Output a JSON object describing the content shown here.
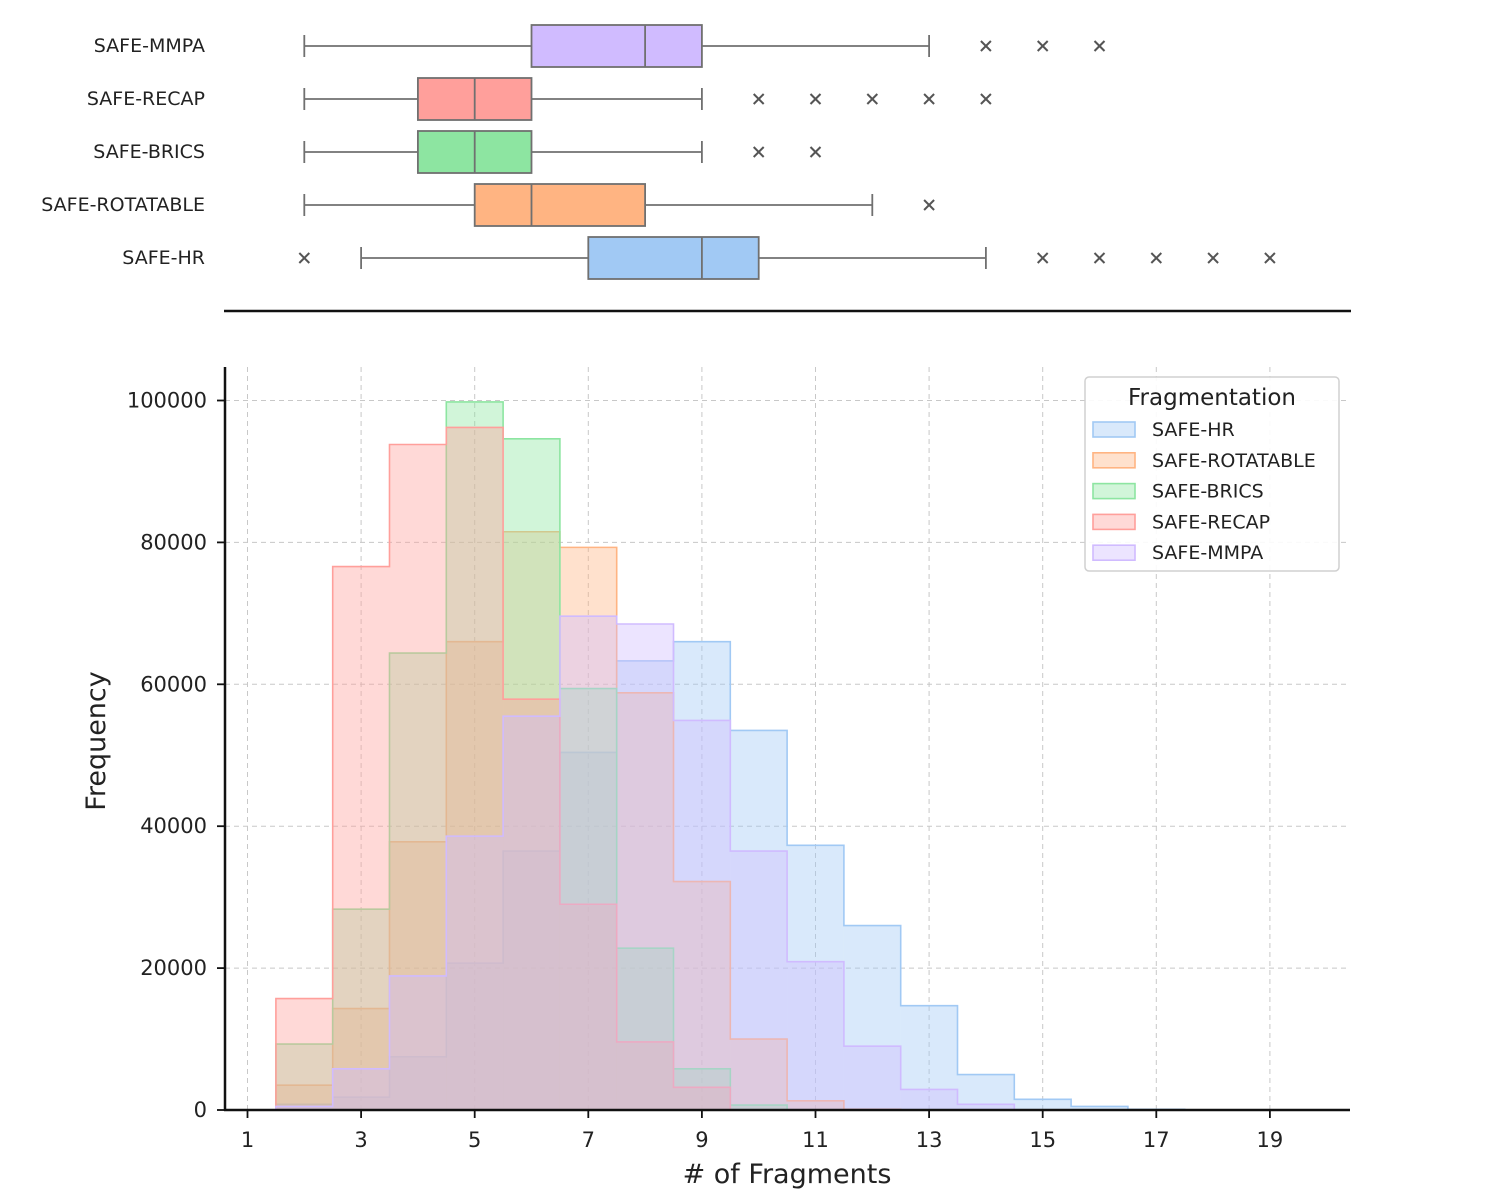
{
  "chart_data": [
    {
      "type": "box",
      "orientation": "horizontal",
      "x_axis_shared_with": "histogram",
      "categories": [
        "SAFE-MMPA",
        "SAFE-RECAP",
        "SAFE-BRICS",
        "SAFE-ROTATABLE",
        "SAFE-HR"
      ],
      "boxes": [
        {
          "name": "SAFE-MMPA",
          "color": "#d0bbff",
          "whisker_low": 2,
          "q1": 6,
          "median": 8,
          "q3": 9,
          "whisker_high": 13,
          "outliers": [
            14,
            15,
            16
          ]
        },
        {
          "name": "SAFE-RECAP",
          "color": "#ff9f9b",
          "whisker_low": 2,
          "q1": 4,
          "median": 5,
          "q3": 6,
          "whisker_high": 9,
          "outliers": [
            10,
            11,
            12,
            13,
            14
          ]
        },
        {
          "name": "SAFE-BRICS",
          "color": "#8de5a1",
          "whisker_low": 2,
          "q1": 4,
          "median": 5,
          "q3": 6,
          "whisker_high": 9,
          "outliers": [
            10,
            11
          ]
        },
        {
          "name": "SAFE-ROTATABLE",
          "color": "#ffb482",
          "whisker_low": 2,
          "q1": 5,
          "median": 6,
          "q3": 8,
          "whisker_high": 12,
          "outliers": [
            13
          ]
        },
        {
          "name": "SAFE-HR",
          "color": "#a1c9f4",
          "whisker_low": 3,
          "q1": 7,
          "median": 9,
          "q3": 10,
          "whisker_high": 14,
          "outliers": [
            2,
            15,
            16,
            17,
            18,
            19
          ]
        }
      ]
    },
    {
      "type": "histogram",
      "style": "step-filled",
      "xlabel": "# of Fragments",
      "ylabel": "Frequency",
      "xlim": [
        0.6,
        20.4
      ],
      "ylim": [
        0,
        104500
      ],
      "xticks": [
        1,
        3,
        5,
        7,
        9,
        11,
        13,
        15,
        17,
        19
      ],
      "yticks": [
        0,
        20000,
        40000,
        60000,
        80000,
        100000
      ],
      "grid": true,
      "bin_centers": [
        2,
        3,
        4,
        5,
        6,
        7,
        8,
        9,
        10,
        11,
        12,
        13,
        14,
        15,
        16,
        17
      ],
      "legend": {
        "title": "Fragmentation",
        "position": "top-right"
      },
      "series": [
        {
          "name": "SAFE-HR",
          "color": "#a1c9f4",
          "values": [
            800,
            1800,
            7500,
            20700,
            36500,
            50400,
            63300,
            66000,
            53500,
            37300,
            26000,
            14700,
            5000,
            1500,
            500,
            100
          ]
        },
        {
          "name": "SAFE-ROTATABLE",
          "color": "#ffb482",
          "values": [
            3500,
            14300,
            37800,
            66000,
            81500,
            79300,
            58800,
            32200,
            10000,
            1300,
            100,
            0,
            0,
            0,
            0,
            0
          ]
        },
        {
          "name": "SAFE-BRICS",
          "color": "#8de5a1",
          "values": [
            9300,
            28300,
            64400,
            99800,
            94600,
            59400,
            22800,
            5800,
            700,
            0,
            0,
            0,
            0,
            0,
            0,
            0
          ]
        },
        {
          "name": "SAFE-RECAP",
          "color": "#ff9f9b",
          "values": [
            15700,
            76600,
            93800,
            96200,
            57900,
            29000,
            9600,
            3200,
            0,
            0,
            0,
            0,
            0,
            0,
            0,
            0
          ]
        },
        {
          "name": "SAFE-MMPA",
          "color": "#d0bbff",
          "values": [
            500,
            5800,
            18900,
            38600,
            55500,
            69600,
            68500,
            54900,
            36500,
            20900,
            9000,
            2900,
            800,
            0,
            0,
            0
          ]
        }
      ]
    }
  ]
}
